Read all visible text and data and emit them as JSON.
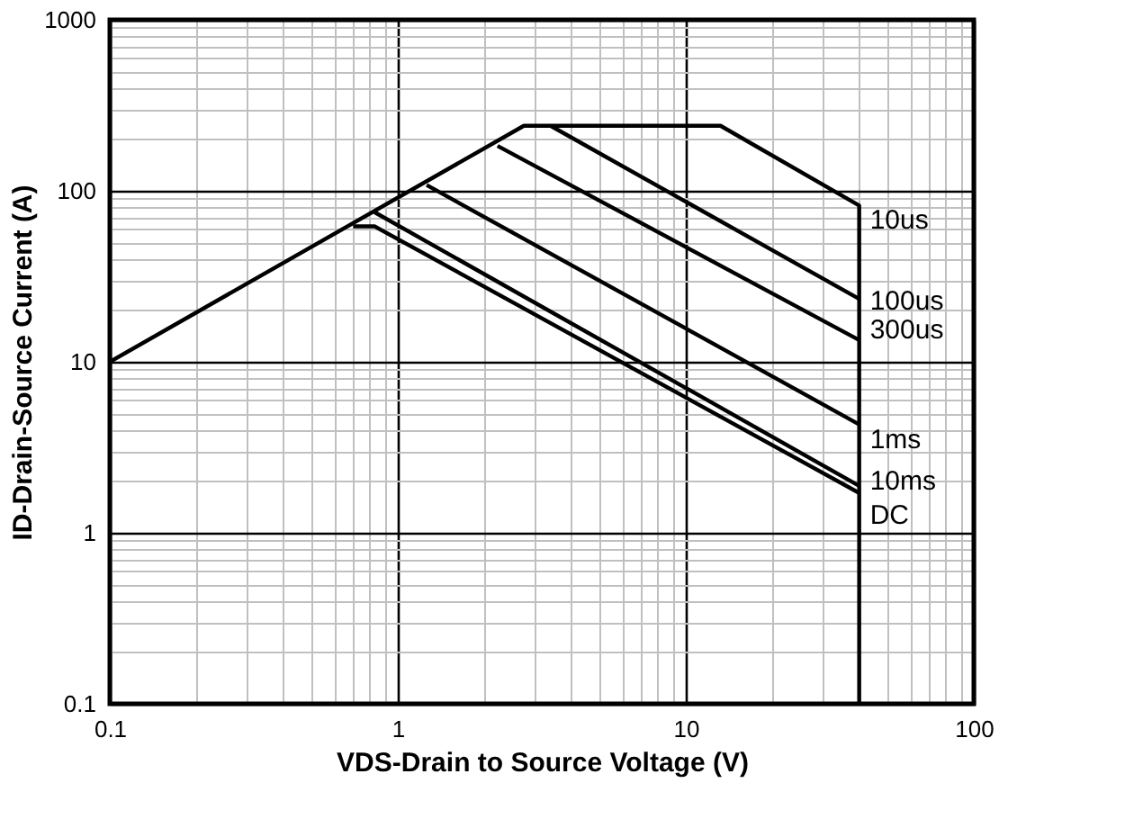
{
  "chart_data": {
    "type": "line",
    "xlabel": "VDS-Drain to Source Voltage (V)",
    "ylabel": "ID-Drain-Source Current (A)",
    "log": "xy",
    "grid": true,
    "legend": false,
    "marker": "none",
    "line_style": "solid",
    "xlim": [
      0.1,
      100
    ],
    "ylim": [
      0.1,
      1000
    ],
    "xticks": [
      0.1,
      {
        "value": 0.2,
        "label": null
      },
      {
        "value": 0.3,
        "label": null
      },
      {
        "value": 0.4,
        "label": null
      },
      {
        "value": 0.5,
        "label": null
      },
      {
        "value": 0.6,
        "label": null
      },
      {
        "value": 0.7,
        "label": null
      },
      {
        "value": 0.8,
        "label": null
      },
      {
        "value": 0.9,
        "label": null
      },
      1,
      {
        "value": 2,
        "label": null
      },
      {
        "value": 3,
        "label": null
      },
      {
        "value": 4,
        "label": null
      },
      {
        "value": 5,
        "label": null
      },
      {
        "value": 6,
        "label": null
      },
      {
        "value": 7,
        "label": null
      },
      {
        "value": 8,
        "label": null
      },
      {
        "value": 9,
        "label": null
      },
      10,
      {
        "value": 20,
        "label": null
      },
      {
        "value": 30,
        "label": null
      },
      {
        "value": 40,
        "label": null
      },
      {
        "value": 50,
        "label": null
      },
      {
        "value": 60,
        "label": null
      },
      {
        "value": 70,
        "label": null
      },
      {
        "value": 80,
        "label": null
      },
      {
        "value": 90,
        "label": null
      },
      100
    ],
    "yticks": [
      0.1,
      {
        "value": 0.2,
        "label": null
      },
      {
        "value": 0.3,
        "label": null
      },
      {
        "value": 0.4,
        "label": null
      },
      {
        "value": 0.5,
        "label": null
      },
      {
        "value": 0.6,
        "label": null
      },
      {
        "value": 0.7,
        "label": null
      },
      {
        "value": 0.8,
        "label": null
      },
      {
        "value": 0.9,
        "label": null
      },
      1,
      {
        "value": 2,
        "label": null
      },
      {
        "value": 3,
        "label": null
      },
      {
        "value": 4,
        "label": null
      },
      {
        "value": 5,
        "label": null
      },
      {
        "value": 6,
        "label": null
      },
      {
        "value": 7,
        "label": null
      },
      {
        "value": 8,
        "label": null
      },
      {
        "value": 9,
        "label": null
      },
      10,
      {
        "value": 20,
        "label": null
      },
      {
        "value": 30,
        "label": null
      },
      {
        "value": 40,
        "label": null
      },
      {
        "value": 50,
        "label": null
      },
      {
        "value": 60,
        "label": null
      },
      {
        "value": 70,
        "label": null
      },
      {
        "value": 80,
        "label": null
      },
      {
        "value": 90,
        "label": null
      },
      100,
      {
        "value": 200,
        "label": null
      },
      {
        "value": 300,
        "label": null
      },
      {
        "value": 400,
        "label": null
      },
      {
        "value": 500,
        "label": null
      },
      {
        "value": 600,
        "label": null
      },
      {
        "value": 700,
        "label": null
      },
      {
        "value": 800,
        "label": null
      },
      {
        "value": 900,
        "label": null
      },
      1000
    ],
    "series": [
      {
        "name": "10us",
        "color": "#000000",
        "x": [
          0.1,
          2.74,
          13.2,
          40,
          40
        ],
        "values": [
          10,
          240,
          240,
          82,
          0.1
        ]
      },
      {
        "name": "100us",
        "color": "#000000",
        "x": [
          3.39,
          40
        ],
        "values": [
          240,
          23.3
        ]
      },
      {
        "name": "300us",
        "color": "#000000",
        "x": [
          2.22,
          40
        ],
        "values": [
          183,
          13.4
        ]
      },
      {
        "name": "1ms",
        "color": "#000000",
        "x": [
          1.26,
          40
        ],
        "values": [
          108,
          4.3
        ]
      },
      {
        "name": "10ms",
        "color": "#000000",
        "x": [
          0.83,
          40
        ],
        "values": [
          75,
          1.88
        ]
      },
      {
        "name": "DC",
        "color": "#000000",
        "x": [
          0.7,
          0.83,
          40
        ],
        "values": [
          62,
          62,
          1.71
        ]
      }
    ]
  }
}
